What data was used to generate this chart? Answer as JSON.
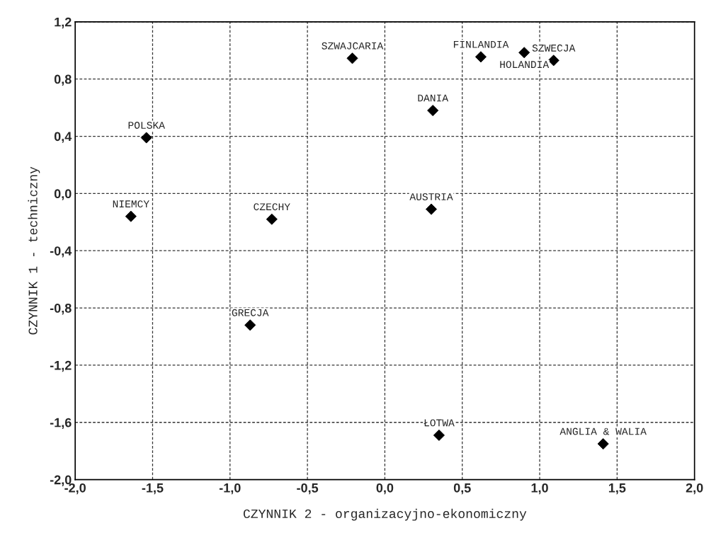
{
  "chart_data": {
    "type": "scatter",
    "xlabel": "CZYNNIK 2 - organizacyjno-ekonomiczny",
    "ylabel": "CZYNNIK 1 - techniczny",
    "x": [
      -0.21,
      0.62,
      0.9,
      1.09,
      0.31,
      0.3,
      -1.54,
      -1.64,
      -0.73,
      -0.87,
      0.35,
      1.41
    ],
    "values": [
      0.945,
      0.955,
      0.985,
      0.93,
      0.58,
      -0.11,
      0.39,
      -0.16,
      -0.18,
      -0.92,
      -1.69,
      -1.75
    ],
    "color": "#000000",
    "marker": "diamond",
    "annotations": [
      {
        "text": "SZWAJCARIA",
        "x": -0.21,
        "y": 0.945
      },
      {
        "text": "FINLANDIA",
        "x": 0.62,
        "y": 0.955
      },
      {
        "text": "HOLANDIA",
        "x": 0.9,
        "y": 0.985
      },
      {
        "text": "SZWECJA",
        "x": 1.09,
        "y": 0.93
      },
      {
        "text": "DANIA",
        "x": 0.31,
        "y": 0.58
      },
      {
        "text": "AUSTRIA",
        "x": 0.3,
        "y": -0.11
      },
      {
        "text": "POLSKA",
        "x": -1.54,
        "y": 0.39
      },
      {
        "text": "NIEMCY",
        "x": -1.64,
        "y": -0.16
      },
      {
        "text": "CZECHY",
        "x": -0.73,
        "y": -0.18
      },
      {
        "text": "GRECJA",
        "x": -0.87,
        "y": -0.92
      },
      {
        "text": "ŁOTWA",
        "x": 0.35,
        "y": -1.69
      },
      {
        "text": "ANGLIA & WALIA",
        "x": 1.41,
        "y": -1.75
      }
    ],
    "xlim": [
      -2.0,
      2.0
    ],
    "ylim": [
      -2.0,
      1.2
    ],
    "xticks": [
      {
        "value": -2.0,
        "label": "-2,0"
      },
      {
        "value": -1.5,
        "label": "-1,5"
      },
      {
        "value": -1.0,
        "label": "-1,0"
      },
      {
        "value": -0.5,
        "label": "-0,5"
      },
      {
        "value": 0.0,
        "label": "0,0"
      },
      {
        "value": 0.5,
        "label": "0,5"
      },
      {
        "value": 1.0,
        "label": "1,0"
      },
      {
        "value": 1.5,
        "label": "1,5"
      },
      {
        "value": 2.0,
        "label": "2,0"
      }
    ],
    "yticks": [
      {
        "value": -2.0,
        "label": "-2,0"
      },
      {
        "value": -1.6,
        "label": "-1,6"
      },
      {
        "value": -1.2,
        "label": "-1,2"
      },
      {
        "value": -0.8,
        "label": "-0,8"
      },
      {
        "value": -0.4,
        "label": "-0,4"
      },
      {
        "value": 0.0,
        "label": "0,0"
      },
      {
        "value": 0.4,
        "label": "0,4"
      },
      {
        "value": 0.8,
        "label": "0,8"
      },
      {
        "value": 1.2,
        "label": "1,2"
      }
    ],
    "grid": true
  }
}
